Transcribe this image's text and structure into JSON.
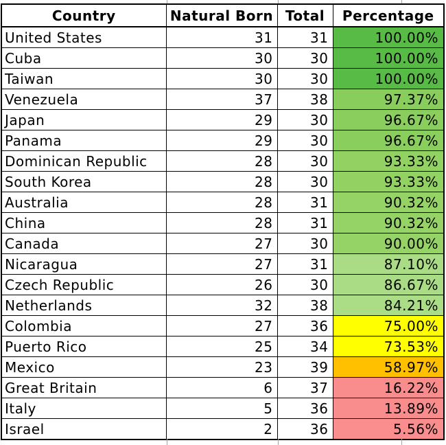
{
  "chart_data": {
    "type": "table",
    "columns": [
      "Country",
      "Natural Born",
      "Total",
      "Percentage"
    ],
    "rows": [
      {
        "country": "United States",
        "natural_born": 31,
        "total": 31,
        "percentage": 100.0,
        "percentage_label": "100.00%",
        "cell_color": "#58BB45"
      },
      {
        "country": "Cuba",
        "natural_born": 30,
        "total": 30,
        "percentage": 100.0,
        "percentage_label": "100.00%",
        "cell_color": "#58BB45"
      },
      {
        "country": "Taiwan",
        "natural_born": 30,
        "total": 30,
        "percentage": 100.0,
        "percentage_label": "100.00%",
        "cell_color": "#58BB45"
      },
      {
        "country": "Venezuela",
        "natural_born": 37,
        "total": 38,
        "percentage": 97.37,
        "percentage_label": "97.37%",
        "cell_color": "#89CE5C"
      },
      {
        "country": "Japan",
        "natural_born": 29,
        "total": 30,
        "percentage": 96.67,
        "percentage_label": "96.67%",
        "cell_color": "#8ACF5D"
      },
      {
        "country": "Panama",
        "natural_born": 29,
        "total": 30,
        "percentage": 96.67,
        "percentage_label": "96.67%",
        "cell_color": "#8ACF5D"
      },
      {
        "country": "Dominican Republic",
        "natural_born": 28,
        "total": 30,
        "percentage": 93.33,
        "percentage_label": "93.33%",
        "cell_color": "#91D263"
      },
      {
        "country": "South Korea",
        "natural_born": 28,
        "total": 30,
        "percentage": 93.33,
        "percentage_label": "93.33%",
        "cell_color": "#91D263"
      },
      {
        "country": "Australia",
        "natural_born": 28,
        "total": 31,
        "percentage": 90.32,
        "percentage_label": "90.32%",
        "cell_color": "#95D366"
      },
      {
        "country": "China",
        "natural_born": 28,
        "total": 31,
        "percentage": 90.32,
        "percentage_label": "90.32%",
        "cell_color": "#95D366"
      },
      {
        "country": "Canada",
        "natural_born": 27,
        "total": 30,
        "percentage": 90.0,
        "percentage_label": "90.00%",
        "cell_color": "#95D367"
      },
      {
        "country": "Nicaragua",
        "natural_born": 27,
        "total": 31,
        "percentage": 87.1,
        "percentage_label": "87.10%",
        "cell_color": "#A9DC84"
      },
      {
        "country": "Czech Republic",
        "natural_born": 26,
        "total": 30,
        "percentage": 86.67,
        "percentage_label": "86.67%",
        "cell_color": "#AADC85"
      },
      {
        "country": "Netherlands",
        "natural_born": 32,
        "total": 38,
        "percentage": 84.21,
        "percentage_label": "84.21%",
        "cell_color": "#ABDD86"
      },
      {
        "country": "Colombia",
        "natural_born": 27,
        "total": 36,
        "percentage": 75.0,
        "percentage_label": "75.00%",
        "cell_color": "#FFFF00"
      },
      {
        "country": "Puerto Rico",
        "natural_born": 25,
        "total": 34,
        "percentage": 73.53,
        "percentage_label": "73.53%",
        "cell_color": "#FFFF00"
      },
      {
        "country": "Mexico",
        "natural_born": 23,
        "total": 39,
        "percentage": 58.97,
        "percentage_label": "58.97%",
        "cell_color": "#FFC000"
      },
      {
        "country": "Great Britain",
        "natural_born": 6,
        "total": 37,
        "percentage": 16.22,
        "percentage_label": "16.22%",
        "cell_color": "#F98C8C"
      },
      {
        "country": "Italy",
        "natural_born": 5,
        "total": 36,
        "percentage": 13.89,
        "percentage_label": "13.89%",
        "cell_color": "#F98C8C"
      },
      {
        "country": "Israel",
        "natural_born": 2,
        "total": 36,
        "percentage": 5.56,
        "percentage_label": "5.56%",
        "cell_color": "#FA8D8D"
      }
    ],
    "layout": {
      "legend": "none",
      "grid": "all-borders",
      "percentage_column_conditional_formatting": "green-yellow-orange-red scale"
    }
  },
  "colors": {
    "table_border": "#000000",
    "background": "#FFFFFF",
    "text": "#000000",
    "gridline_stub": "#A6A6A6"
  }
}
